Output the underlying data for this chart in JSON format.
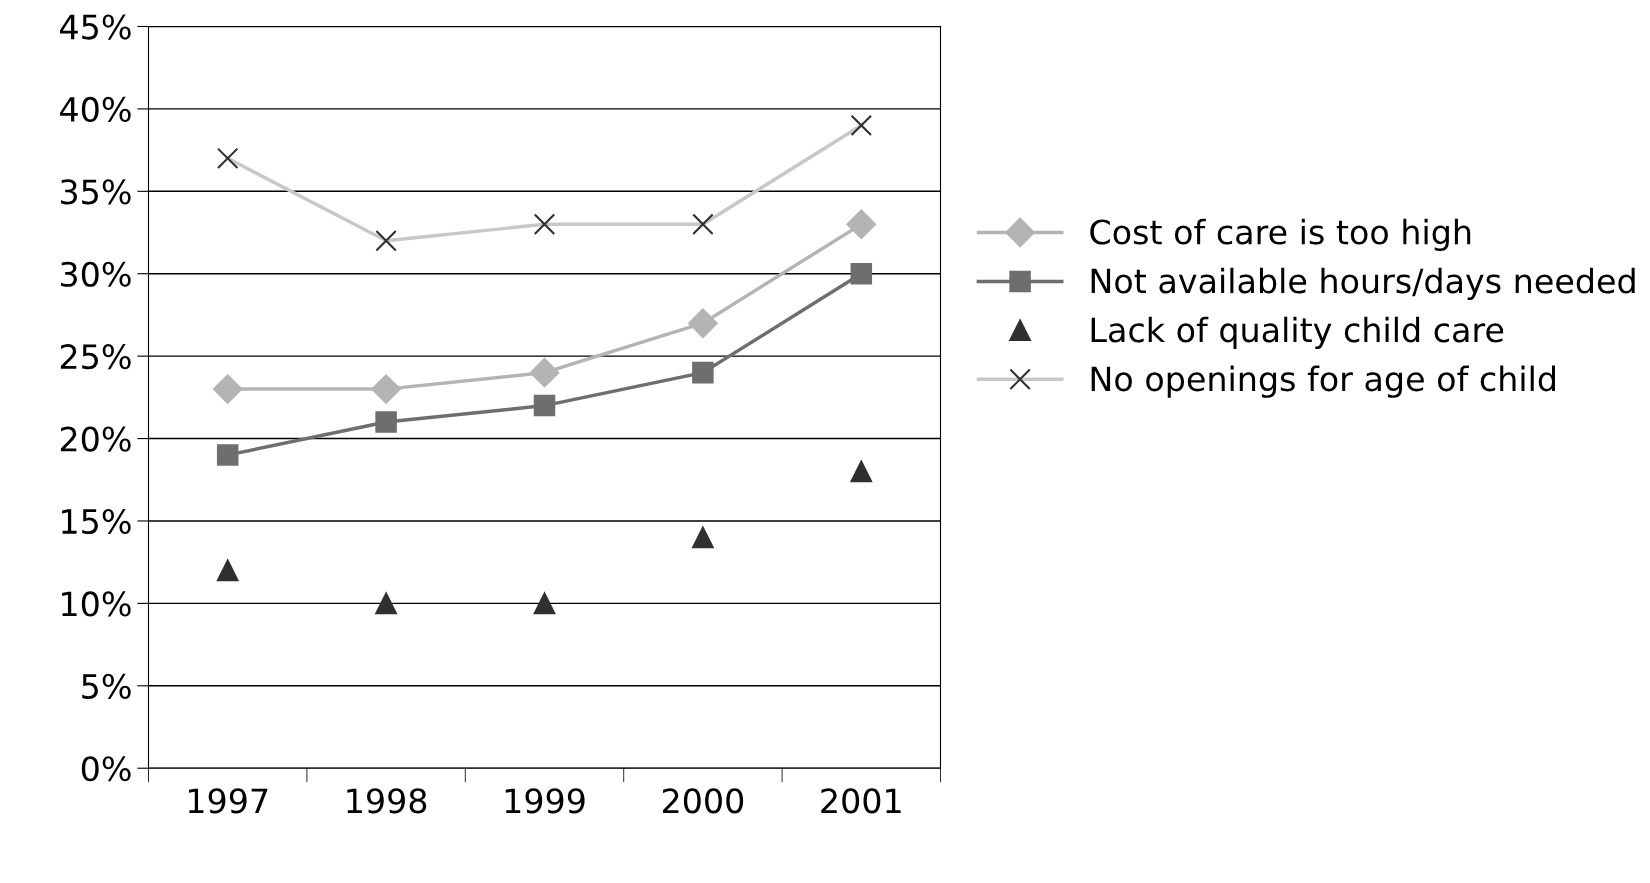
{
  "chart_data": {
    "type": "line",
    "categories": [
      "1997",
      "1998",
      "1999",
      "2000",
      "2001"
    ],
    "series": [
      {
        "name": "Cost of care is too high",
        "color": "#b4b4b4",
        "marker": "diamond",
        "line_style": "solid",
        "values": [
          23,
          23,
          24,
          27,
          33
        ]
      },
      {
        "name": "Not available hours/days needed",
        "color": "#6e6e6e",
        "marker": "square",
        "line_style": "solid",
        "values": [
          19,
          21,
          22,
          24,
          30
        ]
      },
      {
        "name": "Lack of quality child care",
        "type": "scatter",
        "color": "#303030",
        "marker": "triangle",
        "values": [
          12,
          10,
          10,
          14,
          18
        ]
      },
      {
        "name": "No openings for age of child",
        "color": "#c8c8c8",
        "marker": "cross",
        "line_style": "solid",
        "values": [
          37,
          32,
          33,
          33,
          39
        ]
      }
    ],
    "ylim": [
      0,
      45
    ],
    "yticks": [
      {
        "value": 0,
        "label": "0%"
      },
      {
        "value": 5,
        "label": "5%"
      },
      {
        "value": 10,
        "label": "10%"
      },
      {
        "value": 15,
        "label": "15%"
      },
      {
        "value": 20,
        "label": "20%"
      },
      {
        "value": 25,
        "label": "25%"
      },
      {
        "value": 30,
        "label": "30%"
      },
      {
        "value": 35,
        "label": "35%"
      },
      {
        "value": 40,
        "label": "40%"
      },
      {
        "value": 45,
        "label": "45%"
      }
    ],
    "grid": "y",
    "legend": "right"
  }
}
